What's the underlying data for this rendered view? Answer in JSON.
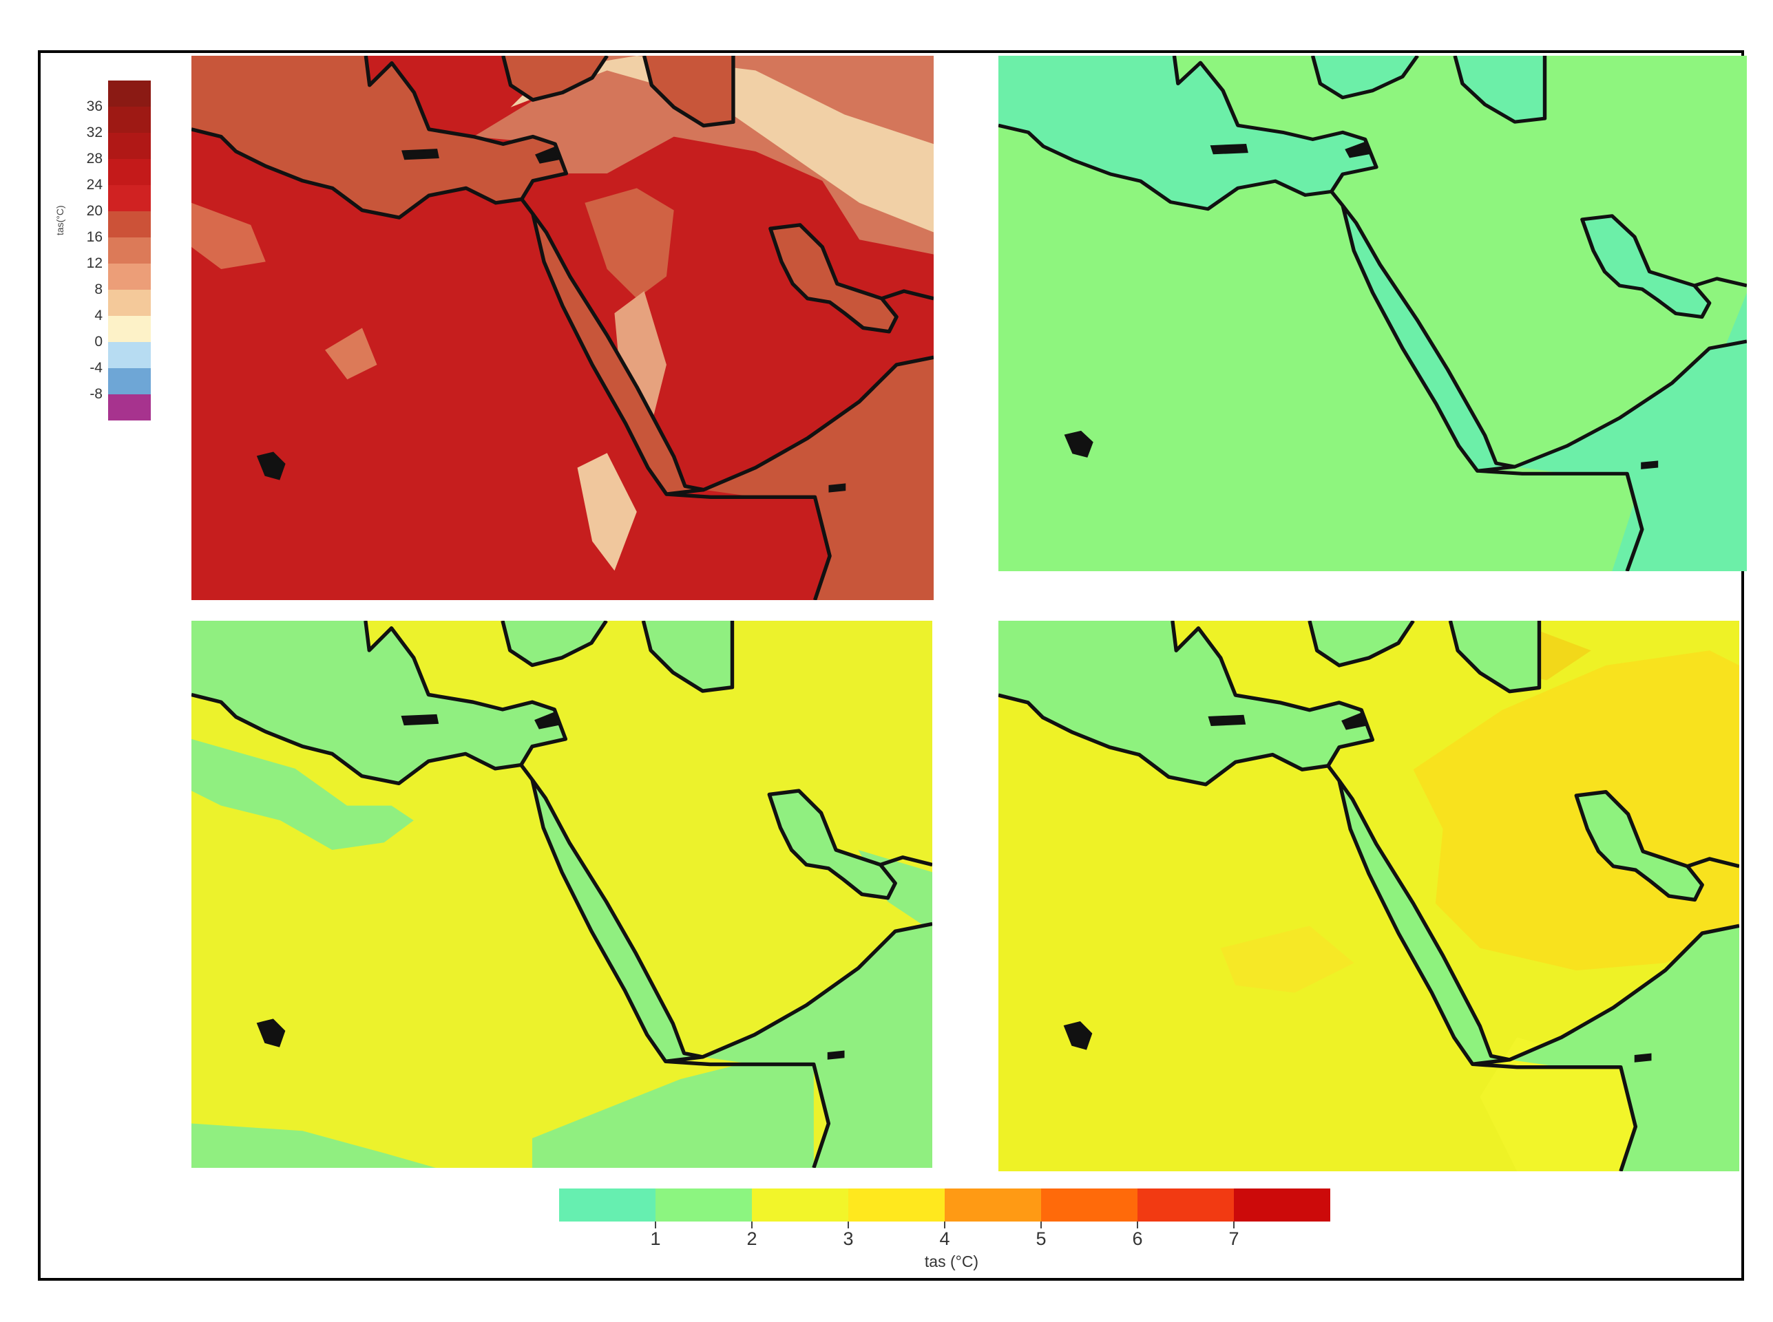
{
  "left_legend": {
    "label": "tas(°C)",
    "ticks": [
      "36",
      "32",
      "28",
      "24",
      "20",
      "16",
      "12",
      "8",
      "4",
      "0",
      "-4",
      "-8"
    ],
    "colors": [
      "#8b1a14",
      "#9e1914",
      "#b01816",
      "#c41a1a",
      "#d02222",
      "#cc5238",
      "#dc7a58",
      "#ec9e78",
      "#f4c99a",
      "#fdf2c8",
      "#b7dcf2",
      "#6ea6d6",
      "#a7338e"
    ]
  },
  "bottom_legend": {
    "label": "tas (°C)",
    "ticks": [
      "1",
      "2",
      "3",
      "4",
      "5",
      "6",
      "7"
    ],
    "colors": [
      "#66efb0",
      "#8cf580",
      "#f2f52a",
      "#ffe81e",
      "#ff9a14",
      "#ff6a0a",
      "#f23a12",
      "#cc0a0a"
    ]
  },
  "panels": [
    {
      "name": "absolute-temperature-map",
      "land": "#c61e1e",
      "sea": "#c8563a"
    },
    {
      "name": "change-map-1",
      "land": "#8ef57e",
      "sea": "#6cefa8"
    },
    {
      "name": "change-map-2",
      "land": "#ecf22c",
      "sea": "#90ef80"
    },
    {
      "name": "change-map-3",
      "land": "#eef226",
      "sea": "#8ef27e"
    }
  ]
}
